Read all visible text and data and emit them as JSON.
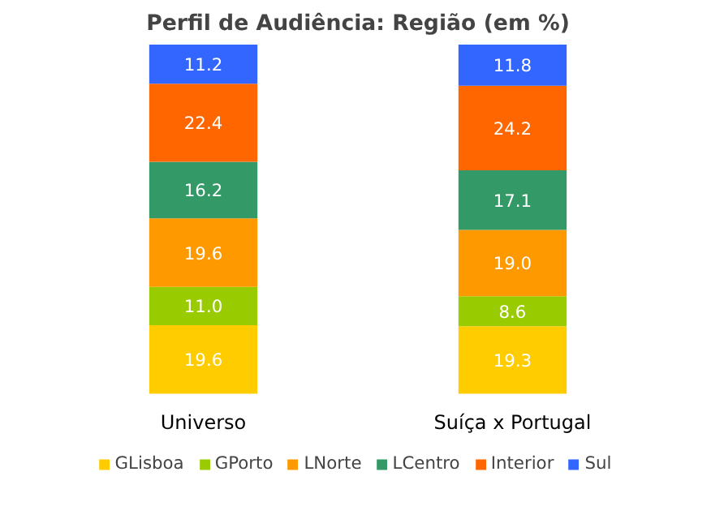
{
  "chart_data": {
    "type": "bar",
    "title": "Perfil de Audiência: Região (em %)",
    "categories": [
      "Universo",
      "Suíça x Portugal"
    ],
    "stacked": true,
    "tick_labels": "x",
    "grid": false,
    "legend": "bottom",
    "series": [
      {
        "name": "GLisboa",
        "color": "#ffcc00",
        "values": [
          19.6,
          19.3
        ],
        "value_labels": [
          "19.6",
          "19.3"
        ]
      },
      {
        "name": "GPorto",
        "color": "#99cc00",
        "values": [
          11.0,
          8.6
        ],
        "value_labels": [
          "11.0",
          "8.6"
        ]
      },
      {
        "name": "LNorte",
        "color": "#ff9900",
        "values": [
          19.6,
          19.0
        ],
        "value_labels": [
          "19.6",
          "19.0"
        ]
      },
      {
        "name": "LCentro",
        "color": "#339966",
        "values": [
          16.2,
          17.1
        ],
        "value_labels": [
          "16.2",
          "17.1"
        ]
      },
      {
        "name": "Interior",
        "color": "#ff6600",
        "values": [
          22.4,
          24.2
        ],
        "value_labels": [
          "22.4",
          "24.2"
        ]
      },
      {
        "name": "Sul",
        "color": "#3366ff",
        "values": [
          11.2,
          11.8
        ],
        "value_labels": [
          "11.2",
          "11.8"
        ]
      }
    ]
  }
}
